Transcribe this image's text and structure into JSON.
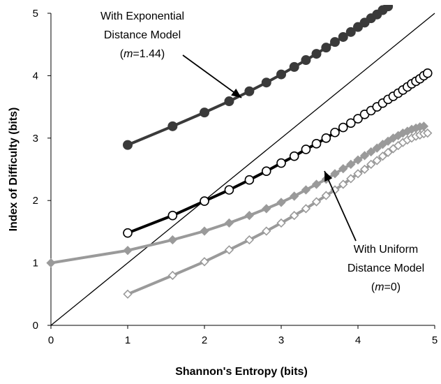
{
  "chart_data": {
    "type": "line",
    "xlabel": "Shannon's Entropy (bits)",
    "ylabel": "Index of Difficulty (bits)",
    "xlim": [
      0,
      5
    ],
    "ylim": [
      0,
      5
    ],
    "xticks": [
      "0",
      "1",
      "2",
      "3",
      "4",
      "5"
    ],
    "yticks": [
      "0",
      "1",
      "2",
      "3",
      "4",
      "5"
    ],
    "grid": false,
    "legend": "none",
    "annotations": [
      {
        "id": "exp",
        "lines": [
          "With Exponential",
          "Distance Model",
          "(m=1.44)"
        ],
        "italic": "m",
        "value": "=1.44"
      },
      {
        "id": "uni",
        "lines": [
          "With Uniform",
          "Distance Model",
          "(m=0)"
        ],
        "italic": "m",
        "value": "=0"
      }
    ],
    "reference_line": {
      "x": [
        0,
        5
      ],
      "y": [
        0,
        5
      ],
      "color": "#000000"
    },
    "series": [
      {
        "marker": "filled-circle",
        "color": "#3a3a3a",
        "x": [
          1.0,
          1.585,
          2.0,
          2.322,
          2.585,
          2.807,
          3.0,
          3.17,
          3.322,
          3.459,
          3.585,
          3.7,
          3.807,
          3.907,
          4.0,
          4.087,
          4.17,
          4.248,
          4.322,
          4.392
        ],
        "y": [
          2.89,
          3.19,
          3.41,
          3.59,
          3.75,
          3.89,
          4.02,
          4.14,
          4.25,
          4.35,
          4.45,
          4.54,
          4.62,
          4.7,
          4.78,
          4.85,
          4.92,
          4.98,
          5.05,
          5.11
        ]
      },
      {
        "marker": "open-circle",
        "color": "#000000",
        "x": [
          1.0,
          1.585,
          2.0,
          2.322,
          2.585,
          2.807,
          3.0,
          3.17,
          3.322,
          3.459,
          3.585,
          3.7,
          3.807,
          3.907,
          4.0,
          4.087,
          4.17,
          4.248,
          4.322,
          4.392,
          4.459,
          4.524,
          4.585,
          4.644,
          4.7,
          4.755,
          4.807,
          4.858,
          4.907
        ],
        "y": [
          1.48,
          1.76,
          1.99,
          2.17,
          2.33,
          2.47,
          2.6,
          2.71,
          2.82,
          2.91,
          3.0,
          3.09,
          3.17,
          3.24,
          3.31,
          3.38,
          3.44,
          3.5,
          3.56,
          3.62,
          3.67,
          3.72,
          3.77,
          3.82,
          3.87,
          3.91,
          3.95,
          4.0,
          4.04
        ]
      },
      {
        "marker": "filled-diamond",
        "color": "#9a9a9a",
        "x": [
          0.0,
          1.0,
          1.585,
          2.0,
          2.322,
          2.585,
          2.807,
          3.0,
          3.17,
          3.322,
          3.459,
          3.585,
          3.7,
          3.807,
          3.907,
          4.0,
          4.087,
          4.17,
          4.248,
          4.322,
          4.392,
          4.459,
          4.524,
          4.585,
          4.644,
          4.7,
          4.755,
          4.807,
          4.858
        ],
        "y": [
          1.0,
          1.2,
          1.37,
          1.51,
          1.64,
          1.76,
          1.87,
          1.97,
          2.07,
          2.17,
          2.26,
          2.34,
          2.43,
          2.51,
          2.58,
          2.65,
          2.72,
          2.78,
          2.84,
          2.9,
          2.95,
          3.0,
          3.04,
          3.08,
          3.11,
          3.14,
          3.16,
          3.18,
          3.19
        ]
      },
      {
        "marker": "open-diamond",
        "color": "#9a9a9a",
        "x": [
          1.0,
          1.585,
          2.0,
          2.322,
          2.585,
          2.807,
          3.0,
          3.17,
          3.322,
          3.459,
          3.585,
          3.7,
          3.807,
          3.907,
          4.0,
          4.087,
          4.17,
          4.248,
          4.322,
          4.392,
          4.459,
          4.524,
          4.585,
          4.644,
          4.7,
          4.755,
          4.807,
          4.858,
          4.907
        ],
        "y": [
          0.5,
          0.8,
          1.02,
          1.21,
          1.37,
          1.51,
          1.64,
          1.76,
          1.87,
          1.98,
          2.08,
          2.17,
          2.26,
          2.35,
          2.43,
          2.5,
          2.58,
          2.64,
          2.71,
          2.77,
          2.83,
          2.88,
          2.93,
          2.97,
          3.0,
          3.03,
          3.05,
          3.07,
          3.08
        ]
      }
    ]
  }
}
